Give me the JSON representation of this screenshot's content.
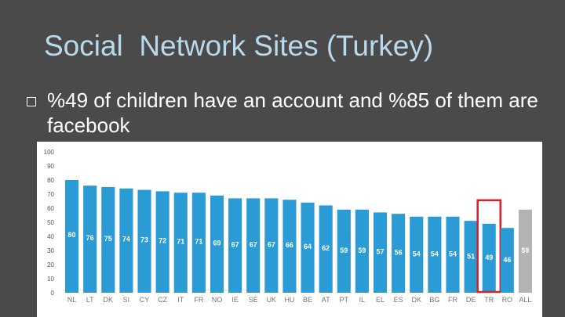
{
  "slide": {
    "title": "Social  Network Sites (Turkey)",
    "bullet": "%49 of children have an account and %85 of them are facebook",
    "bullet_icon": "square-bullet-icon"
  },
  "chart_data": {
    "type": "bar",
    "categories": [
      "NL",
      "LT",
      "DK",
      "SI",
      "CY",
      "CZ",
      "IT",
      "FR",
      "NO",
      "IE",
      "SE",
      "UK",
      "HU",
      "BE",
      "AT",
      "PT",
      "IL",
      "EL",
      "ES",
      "DK",
      "BG",
      "FR",
      "DE",
      "TR",
      "RO",
      "ALL"
    ],
    "values": [
      80,
      76,
      75,
      74,
      73,
      72,
      71,
      71,
      69,
      67,
      67,
      67,
      66,
      64,
      62,
      59,
      59,
      57,
      56,
      54,
      54,
      54,
      51,
      49,
      46,
      59
    ],
    "ylim": [
      0,
      100
    ],
    "yticks": [
      0,
      10,
      20,
      30,
      40,
      50,
      60,
      70,
      80,
      90,
      100
    ],
    "grid": false,
    "colors": {
      "bar": "#2b9bd6",
      "average": "#b3b3b3",
      "highlight_box": "#d9202a"
    },
    "highlight_category": "TR",
    "average_category": "ALL"
  }
}
